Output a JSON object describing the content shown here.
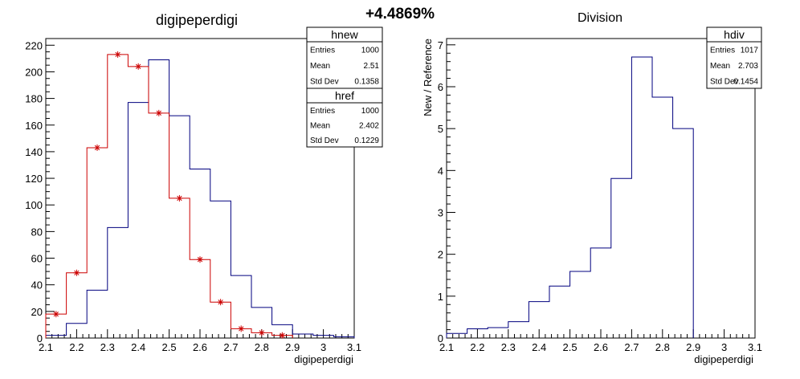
{
  "page": {
    "center_text": "+4.4869%"
  },
  "chart_data": [
    {
      "type": "histogram",
      "title": "digipeperdigi",
      "xlabel": "digipeperdigi",
      "ylabel": "",
      "xlim": [
        2.1,
        3.1
      ],
      "ylim": [
        0,
        225
      ],
      "x_ticks": [
        "2.1",
        "2.2",
        "2.3",
        "2.4",
        "2.5",
        "2.6",
        "2.7",
        "2.8",
        "2.9",
        "3",
        "3.1"
      ],
      "y_ticks": [
        "0",
        "20",
        "40",
        "60",
        "80",
        "100",
        "120",
        "140",
        "160",
        "180",
        "200",
        "220"
      ],
      "bin_edges": [
        2.1,
        2.1667,
        2.2333,
        2.3,
        2.3667,
        2.4333,
        2.5,
        2.5667,
        2.6333,
        2.7,
        2.7667,
        2.8333,
        2.9,
        2.9667,
        3.0333,
        3.1
      ],
      "series": [
        {
          "name": "hnew",
          "color": "#00007f",
          "values": [
            2,
            11,
            36,
            83,
            177,
            209,
            167,
            127,
            103,
            47,
            23,
            10,
            3,
            2,
            1
          ]
        },
        {
          "name": "href",
          "color": "#cc0000",
          "marker": "star",
          "values": [
            18,
            49,
            143,
            213,
            204,
            169,
            105,
            59,
            27,
            7,
            4,
            2,
            0,
            0,
            0
          ]
        }
      ],
      "stats": [
        {
          "name": "hnew",
          "rows": [
            {
              "label": "Entries",
              "value": "1000"
            },
            {
              "label": "Mean",
              "value": "2.51"
            },
            {
              "label": "Std Dev",
              "value": "0.1358"
            }
          ]
        },
        {
          "name": "href",
          "rows": [
            {
              "label": "Entries",
              "value": "1000"
            },
            {
              "label": "Mean",
              "value": "2.402"
            },
            {
              "label": "Std Dev",
              "value": "0.1229"
            }
          ]
        }
      ]
    },
    {
      "type": "histogram",
      "title": "Division",
      "xlabel": "digipeperdigi",
      "ylabel": "New / Reference",
      "xlim": [
        2.1,
        3.1
      ],
      "ylim": [
        0,
        7.15
      ],
      "x_ticks": [
        "2.1",
        "2.2",
        "2.3",
        "2.4",
        "2.5",
        "2.6",
        "2.7",
        "2.8",
        "2.9",
        "3",
        "3.1"
      ],
      "y_ticks": [
        "0",
        "1",
        "2",
        "3",
        "4",
        "5",
        "6",
        "7"
      ],
      "bin_edges": [
        2.1,
        2.1667,
        2.2333,
        2.3,
        2.3667,
        2.4333,
        2.5,
        2.5667,
        2.6333,
        2.7,
        2.7667,
        2.8333,
        2.9,
        2.9667,
        3.0333,
        3.1
      ],
      "series": [
        {
          "name": "hdiv",
          "color": "#00007f",
          "values": [
            0.11,
            0.22,
            0.25,
            0.39,
            0.87,
            1.24,
            1.59,
            2.15,
            3.81,
            6.71,
            5.75,
            5.0,
            0,
            0,
            0
          ]
        }
      ],
      "stats": [
        {
          "name": "hdiv",
          "rows": [
            {
              "label": "Entries",
              "value": "1017"
            },
            {
              "label": "Mean",
              "value": "2.703"
            },
            {
              "label": "Std Dev",
              "value": "0.1454"
            }
          ]
        }
      ]
    }
  ]
}
